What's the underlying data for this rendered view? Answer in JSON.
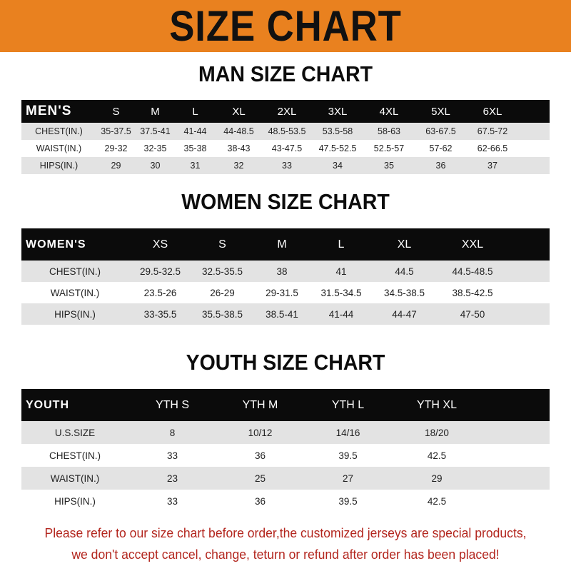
{
  "banner_title": "SIZE CHART",
  "colors": {
    "banner": "#e9811f",
    "header_row": "#0b0b0b",
    "stripe": "#e3e3e3",
    "note": "#b3261e"
  },
  "men": {
    "title": "MAN SIZE CHART",
    "header": [
      "MEN'S",
      "S",
      "M",
      "L",
      "XL",
      "2XL",
      "3XL",
      "4XL",
      "5XL",
      "6XL"
    ],
    "rows": [
      [
        "CHEST(IN.)",
        "35-37.5",
        "37.5-41",
        "41-44",
        "44-48.5",
        "48.5-53.5",
        "53.5-58",
        "58-63",
        "63-67.5",
        "67.5-72"
      ],
      [
        "WAIST(IN.)",
        "29-32",
        "32-35",
        "35-38",
        "38-43",
        "43-47.5",
        "47.5-52.5",
        "52.5-57",
        "57-62",
        "62-66.5"
      ],
      [
        "HIPS(IN.)",
        "29",
        "30",
        "31",
        "32",
        "33",
        "34",
        "35",
        "36",
        "37"
      ]
    ]
  },
  "women": {
    "title": "WOMEN SIZE CHART",
    "header": [
      "WOMEN'S",
      "XS",
      "S",
      "M",
      "L",
      "XL",
      "XXL"
    ],
    "rows": [
      [
        "CHEST(IN.)",
        "29.5-32.5",
        "32.5-35.5",
        "38",
        "41",
        "44.5",
        "44.5-48.5"
      ],
      [
        "WAIST(IN.)",
        "23.5-26",
        "26-29",
        "29-31.5",
        "31.5-34.5",
        "34.5-38.5",
        "38.5-42.5"
      ],
      [
        "HIPS(IN.)",
        "33-35.5",
        "35.5-38.5",
        "38.5-41",
        "41-44",
        "44-47",
        "47-50"
      ]
    ]
  },
  "youth": {
    "title": "YOUTH SIZE CHART",
    "header": [
      "YOUTH",
      "YTH S",
      "YTH M",
      "YTH L",
      "YTH XL"
    ],
    "rows": [
      [
        "U.S.SIZE",
        "8",
        "10/12",
        "14/16",
        "18/20"
      ],
      [
        "CHEST(IN.)",
        "33",
        "36",
        "39.5",
        "42.5"
      ],
      [
        "WAIST(IN.)",
        "23",
        "25",
        "27",
        "29"
      ],
      [
        "HIPS(IN.)",
        "33",
        "36",
        "39.5",
        "42.5"
      ]
    ]
  },
  "note": {
    "line1": "Please refer to our size chart before order,the customized jerseys are special products,",
    "line2": "we don't accept cancel, change, teturn or refund after order has been placed!"
  }
}
